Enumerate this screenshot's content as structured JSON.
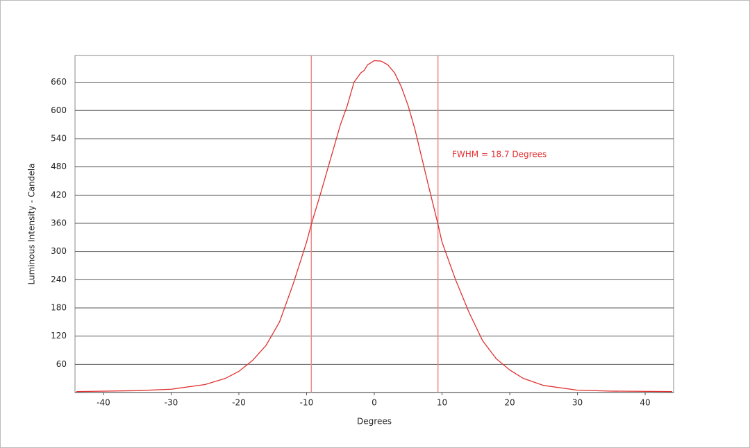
{
  "chart_data": {
    "type": "line",
    "xlabel": "Degrees",
    "ylabel": "Luminous Intensity - Candela",
    "annotation": "FWHM = 18.7 Degrees",
    "xlim": [
      -44.2,
      44.2
    ],
    "ylim": [
      0,
      717
    ],
    "xticks": [
      -40,
      -30,
      -20,
      -10,
      0,
      10,
      20,
      30,
      40
    ],
    "yticks": [
      60,
      120,
      180,
      240,
      300,
      360,
      420,
      480,
      540,
      600,
      660
    ],
    "grid": true,
    "vlines": [
      -9.3,
      9.4
    ],
    "series": [
      {
        "color": "#e03030",
        "x": [
          -44,
          -35,
          -30,
          -25,
          -22,
          -20,
          -18,
          -16,
          -14,
          -12,
          -10,
          -9.3,
          -8,
          -6,
          -5,
          -4,
          -3,
          -2,
          -1.5,
          -1,
          0,
          1,
          2,
          3,
          4,
          5,
          6,
          7,
          8,
          9.4,
          10,
          12,
          14,
          16,
          18,
          20,
          22,
          25,
          30,
          35,
          44
        ],
        "values": [
          2,
          4,
          7,
          17,
          30,
          45,
          68,
          100,
          150,
          230,
          320,
          358,
          420,
          520,
          570,
          610,
          660,
          680,
          685,
          697,
          706,
          705,
          697,
          680,
          650,
          610,
          560,
          500,
          440,
          358,
          320,
          240,
          170,
          110,
          72,
          48,
          30,
          15,
          5,
          3,
          2
        ]
      }
    ]
  }
}
